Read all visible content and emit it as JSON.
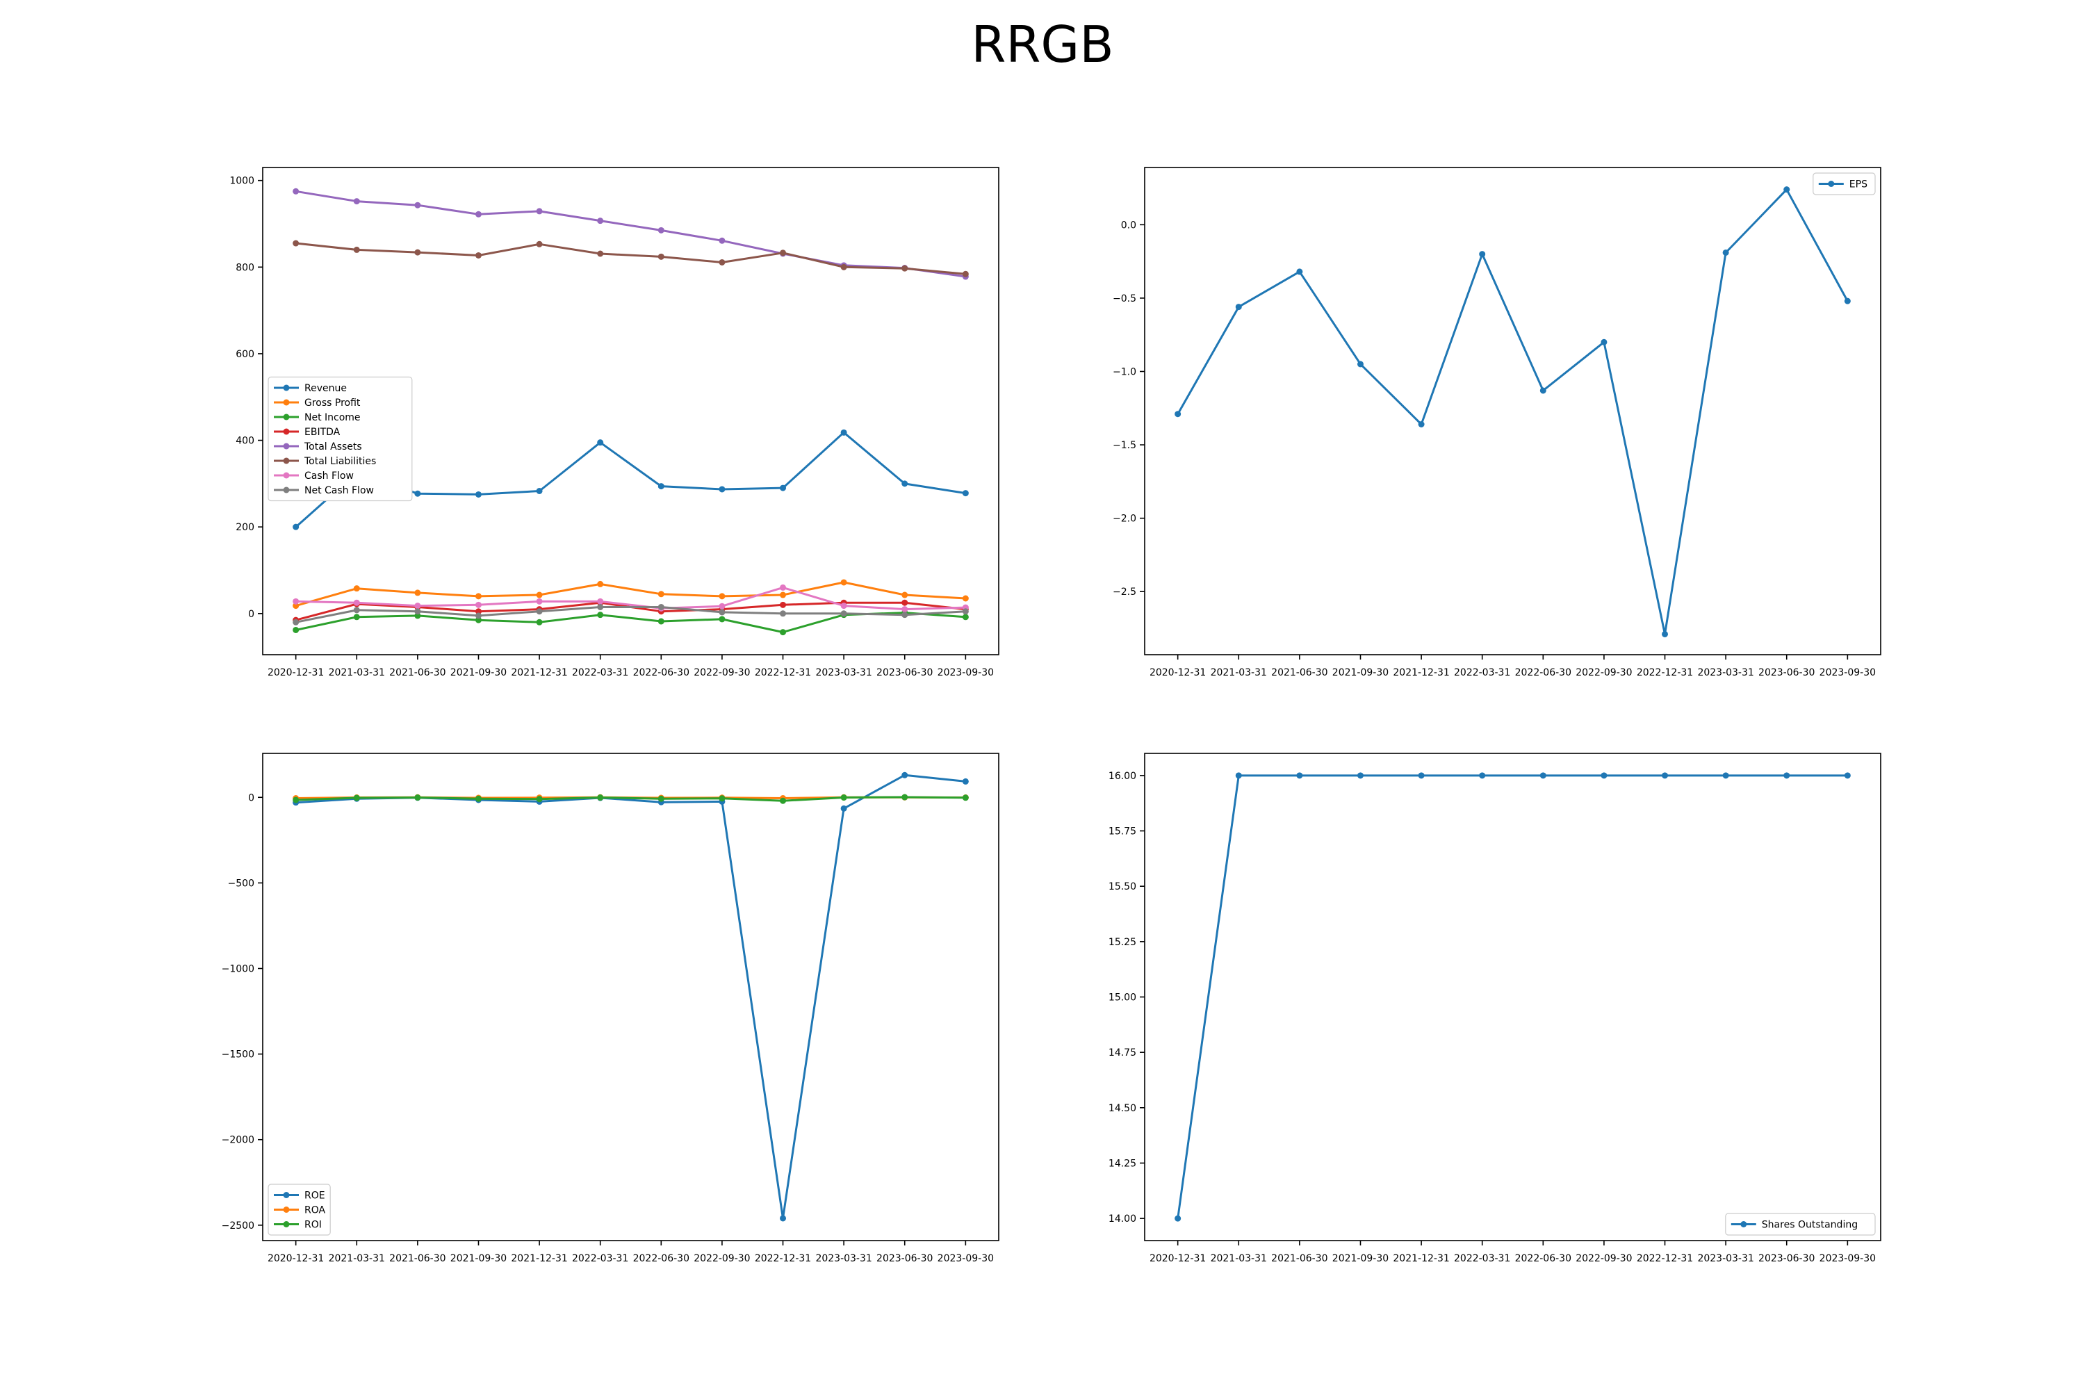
{
  "title": "RRGB",
  "colors": {
    "blue": "#1f77b4",
    "orange": "#ff7f0e",
    "green": "#2ca02c",
    "red": "#d62728",
    "purple": "#9467bd",
    "brown": "#8c564b",
    "pink": "#e377c2",
    "gray": "#7f7f7f"
  },
  "chart_data": [
    {
      "id": "financials",
      "type": "line",
      "x": [
        "2020-12-31",
        "2021-03-31",
        "2021-06-30",
        "2021-09-30",
        "2021-12-31",
        "2022-03-31",
        "2022-06-30",
        "2022-09-30",
        "2022-12-31",
        "2023-03-31",
        "2023-06-30",
        "2023-09-30"
      ],
      "ylim": [
        -95,
        1030
      ],
      "yticks": [
        0,
        200,
        400,
        600,
        800,
        1000
      ],
      "grid": false,
      "legend": "center-left",
      "series": [
        {
          "name": "Revenue",
          "color": "blue",
          "values": [
            200,
            325,
            277,
            275,
            283,
            395,
            294,
            287,
            290,
            418,
            300,
            278
          ]
        },
        {
          "name": "Gross Profit",
          "color": "orange",
          "values": [
            18,
            58,
            48,
            40,
            43,
            68,
            45,
            40,
            43,
            72,
            43,
            35
          ]
        },
        {
          "name": "Net Income",
          "color": "green",
          "values": [
            -38,
            -8,
            -5,
            -15,
            -20,
            -3,
            -18,
            -13,
            -43,
            -3,
            2,
            -8
          ]
        },
        {
          "name": "EBITDA",
          "color": "red",
          "values": [
            -15,
            22,
            15,
            5,
            10,
            25,
            5,
            10,
            20,
            25,
            25,
            10
          ]
        },
        {
          "name": "Total Assets",
          "color": "purple",
          "values": [
            975,
            952,
            943,
            922,
            929,
            907,
            885,
            861,
            831,
            804,
            798,
            778
          ]
        },
        {
          "name": "Total Liabilities",
          "color": "brown",
          "values": [
            855,
            840,
            834,
            827,
            853,
            831,
            824,
            811,
            833,
            800,
            797,
            784
          ]
        },
        {
          "name": "Cash Flow",
          "color": "pink",
          "values": [
            28,
            25,
            18,
            20,
            28,
            28,
            12,
            17,
            60,
            18,
            10,
            14
          ]
        },
        {
          "name": "Net Cash Flow",
          "color": "gray",
          "values": [
            -20,
            8,
            5,
            -5,
            5,
            15,
            15,
            3,
            0,
            0,
            -3,
            5
          ]
        }
      ]
    },
    {
      "id": "eps",
      "type": "line",
      "x": [
        "2020-12-31",
        "2021-03-31",
        "2021-06-30",
        "2021-09-30",
        "2021-12-31",
        "2022-03-31",
        "2022-06-30",
        "2022-09-30",
        "2022-12-31",
        "2023-03-31",
        "2023-06-30",
        "2023-09-30"
      ],
      "ylim": [
        -2.93,
        0.39
      ],
      "yticks": [
        -2.5,
        -2.0,
        -1.5,
        -1.0,
        -0.5,
        0.0
      ],
      "ytick_labels": [
        "−2.5",
        "−2.0",
        "−1.5",
        "−1.0",
        "−0.5",
        "0.0"
      ],
      "grid": false,
      "legend": "top-right",
      "series": [
        {
          "name": "EPS",
          "color": "blue",
          "values": [
            -1.29,
            -0.56,
            -0.32,
            -0.95,
            -1.36,
            -0.2,
            -1.13,
            -0.8,
            -2.79,
            -0.19,
            0.24,
            -0.52
          ]
        }
      ]
    },
    {
      "id": "ratios",
      "type": "line",
      "x": [
        "2020-12-31",
        "2021-03-31",
        "2021-06-30",
        "2021-09-30",
        "2021-12-31",
        "2022-03-31",
        "2022-06-30",
        "2022-09-30",
        "2022-12-31",
        "2023-03-31",
        "2023-06-30",
        "2023-09-30"
      ],
      "ylim": [
        -2590,
        257
      ],
      "yticks": [
        -2500,
        -2000,
        -1500,
        -1000,
        -500,
        0
      ],
      "ytick_labels": [
        "−2500",
        "−2000",
        "−1500",
        "−1000",
        "−500",
        "0"
      ],
      "grid": false,
      "legend": "bottom-left",
      "series": [
        {
          "name": "ROE",
          "color": "blue",
          "values": [
            -30,
            -8,
            -2,
            -15,
            -25,
            -3,
            -28,
            -25,
            -2460,
            -65,
            130,
            93
          ]
        },
        {
          "name": "ROA",
          "color": "orange",
          "values": [
            -5,
            -1,
            0,
            -3,
            -2,
            0,
            -3,
            -2,
            -5,
            0,
            0,
            -1
          ]
        },
        {
          "name": "ROI",
          "color": "green",
          "values": [
            -15,
            -3,
            -1,
            -8,
            -10,
            -1,
            -8,
            -6,
            -20,
            -1,
            1,
            -2
          ]
        }
      ]
    },
    {
      "id": "shares",
      "type": "line",
      "x": [
        "2020-12-31",
        "2021-03-31",
        "2021-06-30",
        "2021-09-30",
        "2021-12-31",
        "2022-03-31",
        "2022-06-30",
        "2022-09-30",
        "2022-12-31",
        "2023-03-31",
        "2023-06-30",
        "2023-09-30"
      ],
      "ylim": [
        13.9,
        16.1
      ],
      "yticks": [
        14.0,
        14.25,
        14.5,
        14.75,
        15.0,
        15.25,
        15.5,
        15.75,
        16.0
      ],
      "ytick_labels": [
        "14.00",
        "14.25",
        "14.50",
        "14.75",
        "15.00",
        "15.25",
        "15.50",
        "15.75",
        "16.00"
      ],
      "grid": false,
      "legend": "bottom-right",
      "series": [
        {
          "name": "Shares Outstanding",
          "color": "blue",
          "values": [
            14.0,
            16.0,
            16.0,
            16.0,
            16.0,
            16.0,
            16.0,
            16.0,
            16.0,
            16.0,
            16.0,
            16.0
          ]
        }
      ]
    }
  ]
}
